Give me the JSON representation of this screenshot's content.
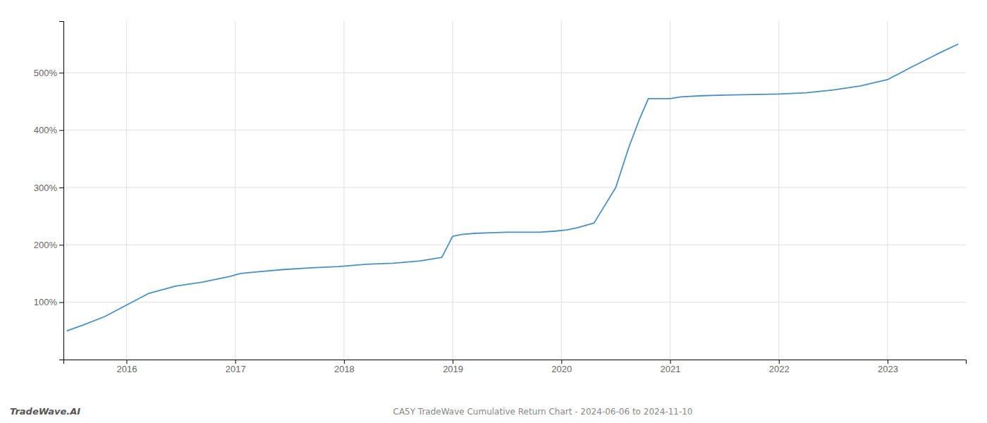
{
  "chart_data": {
    "type": "line",
    "title": "CA5Y TradeWave Cumulative Return Chart - 2024-06-06 to 2024-11-10",
    "annotations": [
      "TradeWave.AI"
    ],
    "color": "#4a90c4",
    "x": [
      2015.45,
      2015.6,
      2015.8,
      2016.0,
      2016.2,
      2016.45,
      2016.7,
      2016.95,
      2017.05,
      2017.2,
      2017.45,
      2017.7,
      2017.95,
      2018.2,
      2018.45,
      2018.7,
      2018.9,
      2019.0,
      2019.08,
      2019.2,
      2019.35,
      2019.5,
      2019.65,
      2019.8,
      2019.95,
      2020.05,
      2020.15,
      2020.3,
      2020.5,
      2020.62,
      2020.72,
      2020.8,
      2021.0,
      2021.1,
      2021.3,
      2021.5,
      2021.75,
      2022.0,
      2022.25,
      2022.5,
      2022.75,
      2023.0,
      2023.2,
      2023.45,
      2023.65
    ],
    "values": [
      50,
      60,
      75,
      95,
      115,
      128,
      135,
      145,
      150,
      153,
      157,
      160,
      162,
      166,
      168,
      172,
      178,
      215,
      218,
      220,
      221,
      222,
      222,
      222,
      224,
      226,
      230,
      238,
      300,
      370,
      420,
      455,
      455,
      458,
      460,
      461,
      462,
      463,
      465,
      470,
      477,
      488,
      508,
      532,
      550
    ],
    "xlim": [
      2015.42,
      2023.72
    ],
    "ylim": [
      0,
      590
    ],
    "xticks": [
      2016,
      2017,
      2018,
      2019,
      2020,
      2021,
      2022,
      2023
    ],
    "yticks": [
      {
        "value": 100,
        "label": "100%"
      },
      {
        "value": 200,
        "label": "200%"
      },
      {
        "value": 300,
        "label": "300%"
      },
      {
        "value": 400,
        "label": "400%"
      },
      {
        "value": 500,
        "label": "500%"
      }
    ],
    "grid": true
  }
}
